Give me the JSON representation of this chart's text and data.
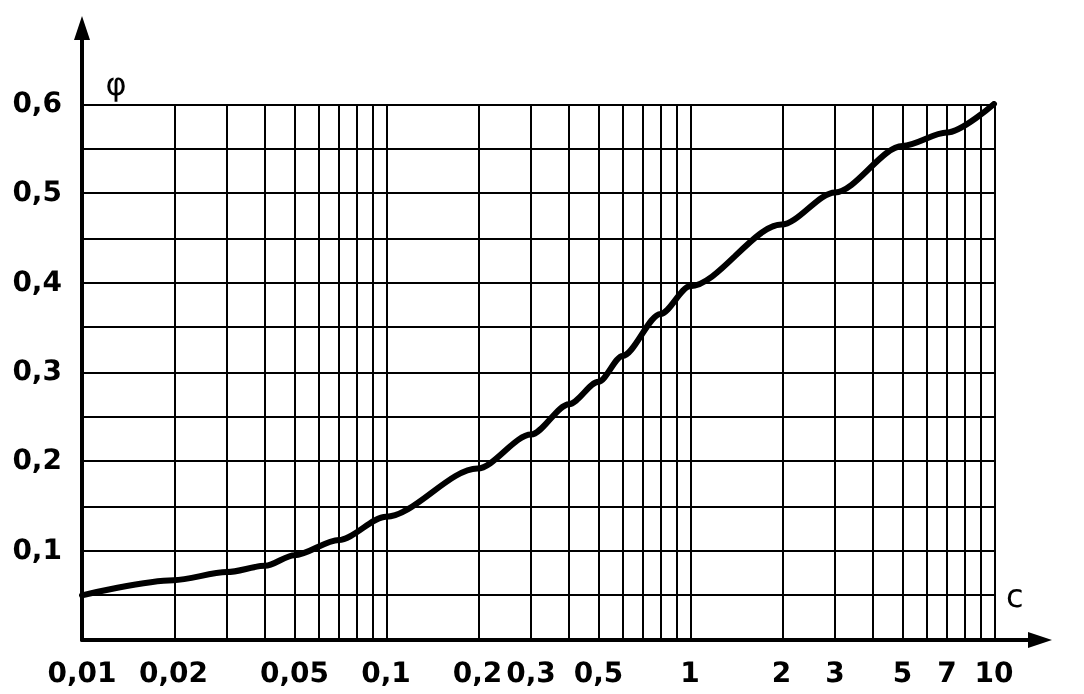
{
  "chart_data": {
    "type": "line",
    "xlabel": "c",
    "ylabel": "φ",
    "log": "x",
    "grid": true,
    "marker": "none",
    "line_style": "solid",
    "xlim": [
      0.01,
      10
    ],
    "ylim": [
      0,
      0.6
    ],
    "xticks": [
      {
        "value": 0.01,
        "label": "0,01"
      },
      {
        "value": 0.02,
        "label": "0,02"
      },
      {
        "value": 0.03,
        "label": null
      },
      {
        "value": 0.04,
        "label": null
      },
      {
        "value": 0.05,
        "label": "0,05"
      },
      {
        "value": 0.06,
        "label": null
      },
      {
        "value": 0.07,
        "label": null
      },
      {
        "value": 0.08,
        "label": null
      },
      {
        "value": 0.09,
        "label": null
      },
      {
        "value": 0.1,
        "label": "0,1"
      },
      {
        "value": 0.2,
        "label": "0,2"
      },
      {
        "value": 0.3,
        "label": "0,3"
      },
      {
        "value": 0.4,
        "label": null
      },
      {
        "value": 0.5,
        "label": "0,5"
      },
      {
        "value": 0.6,
        "label": null
      },
      {
        "value": 0.7,
        "label": null
      },
      {
        "value": 0.8,
        "label": null
      },
      {
        "value": 0.9,
        "label": null
      },
      {
        "value": 1,
        "label": "1"
      },
      {
        "value": 2,
        "label": "2"
      },
      {
        "value": 3,
        "label": "3"
      },
      {
        "value": 4,
        "label": null
      },
      {
        "value": 5,
        "label": "5"
      },
      {
        "value": 6,
        "label": null
      },
      {
        "value": 7,
        "label": "7"
      },
      {
        "value": 8,
        "label": null
      },
      {
        "value": 9,
        "label": null
      },
      {
        "value": 10,
        "label": "10"
      }
    ],
    "yticks": [
      {
        "value": 0,
        "label": null
      },
      {
        "value": 0.05,
        "label": null
      },
      {
        "value": 0.1,
        "label": "0,1"
      },
      {
        "value": 0.15,
        "label": null
      },
      {
        "value": 0.2,
        "label": "0,2"
      },
      {
        "value": 0.25,
        "label": null
      },
      {
        "value": 0.3,
        "label": "0,3"
      },
      {
        "value": 0.35,
        "label": null
      },
      {
        "value": 0.4,
        "label": "0,4"
      },
      {
        "value": 0.45,
        "label": null
      },
      {
        "value": 0.5,
        "label": "0,5"
      },
      {
        "value": 0.55,
        "label": null
      },
      {
        "value": 0.6,
        "label": "0,6"
      }
    ],
    "x": [
      0.01,
      0.02,
      0.03,
      0.04,
      0.05,
      0.07,
      0.1,
      0.2,
      0.3,
      0.4,
      0.5,
      0.6,
      0.8,
      1,
      2,
      3,
      5,
      7,
      10
    ],
    "series": [
      {
        "color": "#000000",
        "values": [
          0.05,
          0.067,
          0.076,
          0.083,
          0.095,
          0.112,
          0.138,
          0.192,
          0.23,
          0.264,
          0.289,
          0.318,
          0.365,
          0.396,
          0.465,
          0.501,
          0.553,
          0.568,
          0.6
        ]
      }
    ]
  }
}
